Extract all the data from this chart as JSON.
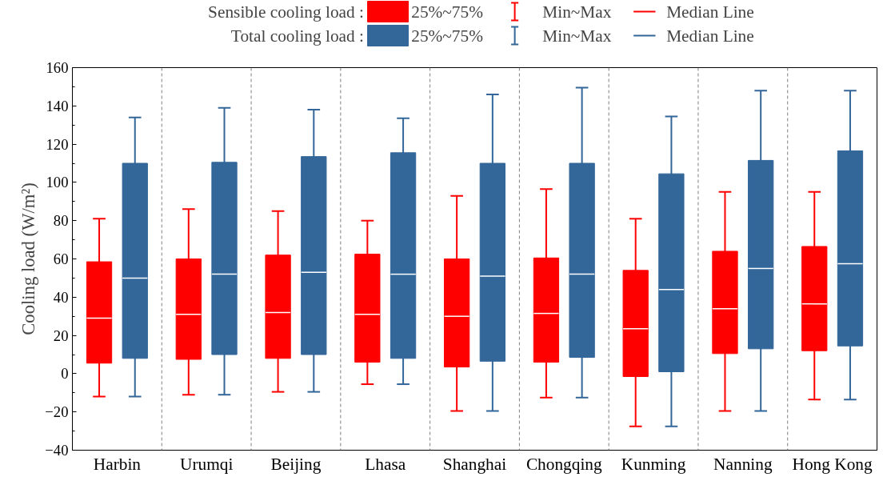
{
  "chart_data": {
    "type": "box",
    "ylabel": "Cooling load (W/m²)",
    "categories": [
      "Harbin",
      "Urumqi",
      "Beijing",
      "Lhasa",
      "Shanghai",
      "Chongqing",
      "Kunming",
      "Nanning",
      "Hong Kong"
    ],
    "ylim": [
      -40,
      160
    ],
    "yticks": [
      -40,
      -20,
      0,
      20,
      40,
      60,
      80,
      100,
      120,
      140,
      160
    ],
    "grid": "x",
    "legend": "top",
    "annotations": [
      "25%~75%",
      "Min~Max",
      "Median Line"
    ],
    "series": [
      {
        "name": "Sensible cooling load :",
        "color": "#ff0000",
        "boxes": [
          {
            "low": -12,
            "q1": 5.5,
            "median": 29,
            "q3": 58.5,
            "high": 81
          },
          {
            "low": -11,
            "q1": 7.5,
            "median": 31,
            "q3": 60,
            "high": 86
          },
          {
            "low": -9.5,
            "q1": 8,
            "median": 32,
            "q3": 62,
            "high": 85
          },
          {
            "low": -5.5,
            "q1": 6,
            "median": 31,
            "q3": 62.5,
            "high": 80
          },
          {
            "low": -19.5,
            "q1": 3.5,
            "median": 30,
            "q3": 60,
            "high": 93
          },
          {
            "low": -12.5,
            "q1": 6,
            "median": 31.5,
            "q3": 60.5,
            "high": 96.5
          },
          {
            "low": -27.5,
            "q1": -1.5,
            "median": 23.5,
            "q3": 54,
            "high": 81
          },
          {
            "low": -19.5,
            "q1": 10.5,
            "median": 34,
            "q3": 64,
            "high": 95
          },
          {
            "low": -13.5,
            "q1": 12,
            "median": 36.5,
            "q3": 66.5,
            "high": 95
          }
        ]
      },
      {
        "name": "Total cooling load :",
        "color": "#336699",
        "boxes": [
          {
            "low": -12,
            "q1": 8,
            "median": 50,
            "q3": 110,
            "high": 134
          },
          {
            "low": -11,
            "q1": 10,
            "median": 52,
            "q3": 110.5,
            "high": 139
          },
          {
            "low": -9.5,
            "q1": 10,
            "median": 53,
            "q3": 113.5,
            "high": 138
          },
          {
            "low": -5.5,
            "q1": 8,
            "median": 52,
            "q3": 115.5,
            "high": 133.5
          },
          {
            "low": -19.5,
            "q1": 6.5,
            "median": 51,
            "q3": 110,
            "high": 146
          },
          {
            "low": -12.5,
            "q1": 8.5,
            "median": 52,
            "q3": 110,
            "high": 149.5
          },
          {
            "low": -27.5,
            "q1": 1,
            "median": 44,
            "q3": 104.5,
            "high": 134.5
          },
          {
            "low": -19.5,
            "q1": 13,
            "median": 55,
            "q3": 111.5,
            "high": 148
          },
          {
            "low": -13.5,
            "q1": 14.5,
            "median": 57.5,
            "q3": 116.5,
            "high": 148
          }
        ]
      }
    ]
  }
}
